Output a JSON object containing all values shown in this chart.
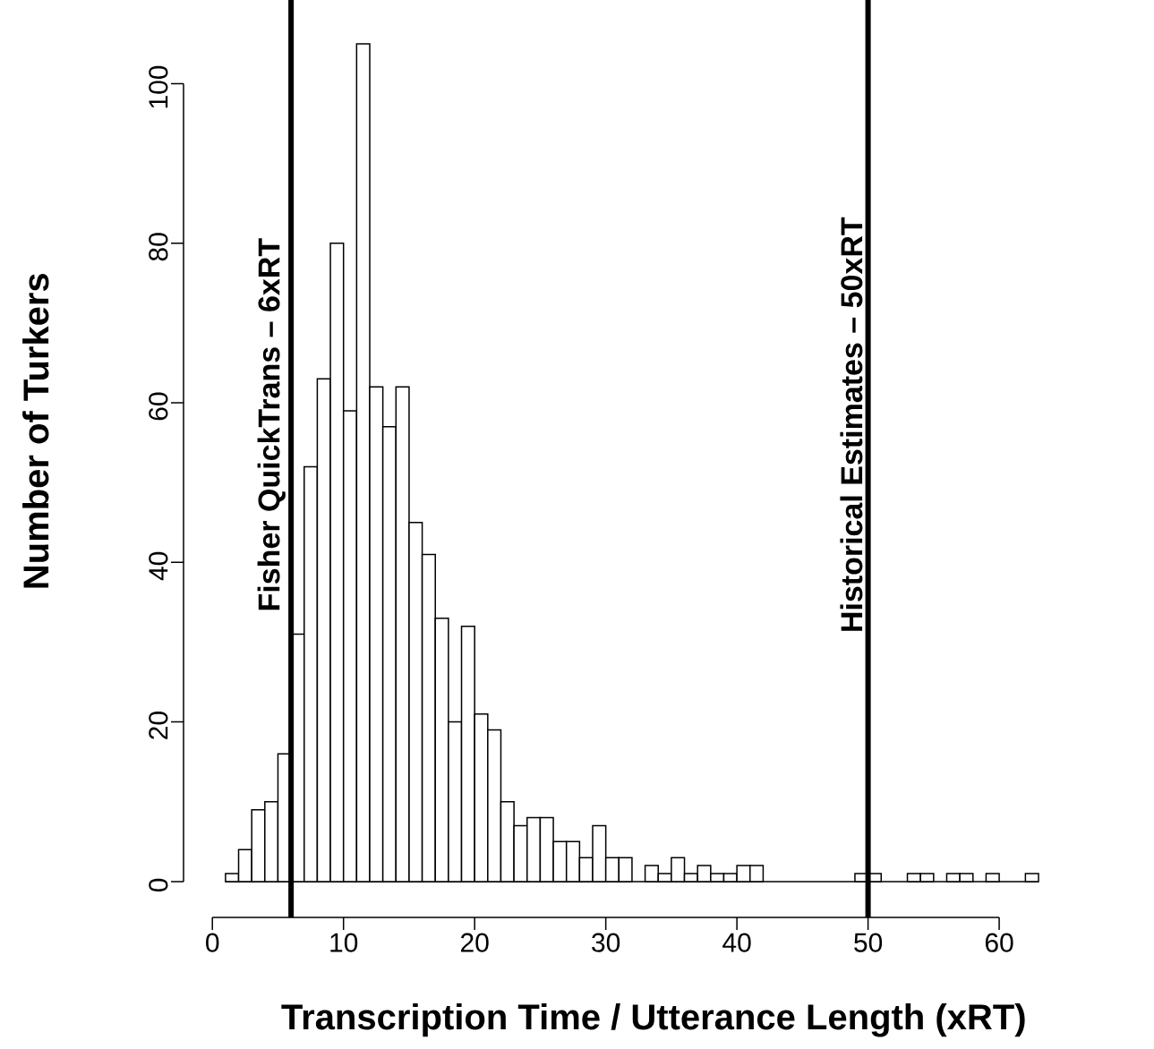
{
  "chart_data": {
    "type": "histogram",
    "xlabel": "Transcription Time / Utterance Length (xRT)",
    "ylabel": "Number of Turkers",
    "bins": [
      1,
      2,
      3,
      4,
      5,
      6,
      7,
      8,
      9,
      10,
      11,
      12,
      13,
      14,
      15,
      16,
      17,
      18,
      19,
      20,
      21,
      22,
      23,
      24,
      25,
      26,
      27,
      28,
      29,
      30,
      31,
      32,
      33,
      34,
      35,
      36,
      37,
      38,
      39,
      40,
      41,
      42,
      43,
      44,
      45,
      46,
      47,
      48,
      49,
      50,
      51,
      52,
      53,
      54,
      55,
      56,
      57,
      58,
      59,
      60,
      61,
      62,
      63
    ],
    "values": [
      1,
      4,
      9,
      10,
      16,
      31,
      52,
      63,
      80,
      59,
      105,
      62,
      57,
      62,
      45,
      41,
      33,
      20,
      32,
      21,
      19,
      10,
      7,
      8,
      8,
      5,
      5,
      3,
      7,
      3,
      3,
      0,
      2,
      1,
      3,
      1,
      2,
      1,
      1,
      2,
      2,
      0,
      0,
      0,
      0,
      0,
      0,
      0,
      1,
      1,
      0,
      0,
      1,
      1,
      0,
      1,
      1,
      0,
      1,
      0,
      0,
      1
    ],
    "color": "#ffffff",
    "xlim": [
      -2.2,
      63
    ],
    "ylim": [
      -4.5,
      110.5
    ],
    "xticks": [
      0,
      10,
      20,
      30,
      40,
      50,
      60
    ],
    "yticks": [
      0,
      20,
      40,
      60,
      80,
      100
    ],
    "ref_lines": [
      {
        "axis": "x",
        "value": 6,
        "label": "Fisher QuickTrans – 6xRT",
        "color": "#000000"
      },
      {
        "axis": "x",
        "value": 50,
        "label": "Historical Estimates – 50xRT",
        "color": "#000000"
      }
    ]
  }
}
